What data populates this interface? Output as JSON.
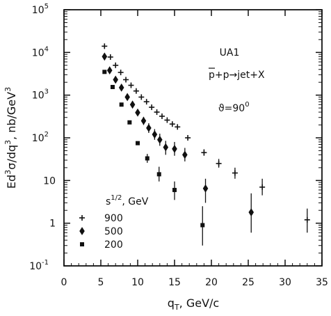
{
  "chart_data": {
    "type": "scatter",
    "annotations": {
      "experiment": "UA1",
      "reaction": "p+p→jet+X",
      "reaction_bar": "p",
      "angle_symbol": "ϑ",
      "angle_value": "=90",
      "angle_deg": "0",
      "legend_header_base": "s",
      "legend_header_exp": "1/2",
      "legend_header_unit": ", GeV"
    },
    "axes": {
      "x": {
        "label_main": "q",
        "label_sub": "T",
        "label_rest": ",  GeV/c",
        "range": [
          0,
          35
        ],
        "scale": "linear",
        "ticks": [
          "0",
          "5",
          "10",
          "15",
          "20",
          "25",
          "30",
          "35"
        ]
      },
      "y": {
        "label_pre": "Ed",
        "label_sup1": "3",
        "label_mid": "σ/dq",
        "label_sup2": "3",
        "label_post": ",  nb/GeV",
        "label_sup3": "3",
        "range": [
          0.1,
          100000
        ],
        "scale": "log",
        "ticks": [
          {
            "value": 100000,
            "base": "10",
            "exp": "5"
          },
          {
            "value": 10000,
            "base": "10",
            "exp": "4"
          },
          {
            "value": 1000,
            "base": "10",
            "exp": "3"
          },
          {
            "value": 100,
            "base": "10",
            "exp": "2"
          },
          {
            "value": 10,
            "base": "10",
            "exp": ""
          },
          {
            "value": 1,
            "base": "1",
            "exp": ""
          },
          {
            "value": 0.1,
            "base": "10",
            "exp": "-1"
          }
        ]
      }
    },
    "legend_position": "lower-left",
    "series": [
      {
        "name": "900",
        "marker": "cross",
        "points": [
          {
            "x": 5.5,
            "y": 14000
          },
          {
            "x": 6.3,
            "y": 7800
          },
          {
            "x": 7.0,
            "y": 5000
          },
          {
            "x": 7.7,
            "y": 3400
          },
          {
            "x": 8.4,
            "y": 2300
          },
          {
            "x": 9.1,
            "y": 1700
          },
          {
            "x": 9.8,
            "y": 1250
          },
          {
            "x": 10.5,
            "y": 900
          },
          {
            "x": 11.2,
            "y": 700
          },
          {
            "x": 11.9,
            "y": 520
          },
          {
            "x": 12.6,
            "y": 400
          },
          {
            "x": 13.3,
            "y": 320
          },
          {
            "x": 14.0,
            "y": 260
          },
          {
            "x": 14.7,
            "y": 210
          },
          {
            "x": 15.4,
            "y": 180
          },
          {
            "x": 16.8,
            "y": 100
          },
          {
            "x": 19.0,
            "y": 45,
            "err": [
              38,
              54
            ]
          },
          {
            "x": 21.0,
            "y": 25,
            "err": [
              20,
              32
            ]
          },
          {
            "x": 23.2,
            "y": 15,
            "err": [
              11,
              20
            ]
          },
          {
            "x": 26.9,
            "y": 7,
            "err": [
              4.5,
              11
            ]
          },
          {
            "x": 33.0,
            "y": 1.2,
            "err": [
              0.6,
              2.2
            ]
          }
        ]
      },
      {
        "name": "500",
        "marker": "diamond",
        "points": [
          {
            "x": 5.5,
            "y": 8000
          },
          {
            "x": 6.2,
            "y": 3800
          },
          {
            "x": 7.0,
            "y": 2300
          },
          {
            "x": 7.8,
            "y": 1500
          },
          {
            "x": 8.6,
            "y": 900
          },
          {
            "x": 9.3,
            "y": 600
          },
          {
            "x": 10.0,
            "y": 390
          },
          {
            "x": 10.8,
            "y": 250,
            "err": [
              200,
              310
            ]
          },
          {
            "x": 11.5,
            "y": 170,
            "err": [
              130,
              220
            ]
          },
          {
            "x": 12.3,
            "y": 120,
            "err": [
              90,
              160
            ]
          },
          {
            "x": 13.0,
            "y": 90,
            "err": [
              65,
              125
            ]
          },
          {
            "x": 13.8,
            "y": 60,
            "err": [
              40,
              85
            ]
          },
          {
            "x": 15.0,
            "y": 55,
            "err": [
              38,
              80
            ]
          },
          {
            "x": 16.4,
            "y": 40,
            "err": [
              28,
              58
            ]
          },
          {
            "x": 19.2,
            "y": 6.5,
            "err": [
              3,
              11
            ]
          },
          {
            "x": 25.4,
            "y": 1.8,
            "err": [
              0.6,
              5
            ]
          }
        ]
      },
      {
        "name": "200",
        "marker": "square",
        "points": [
          {
            "x": 5.5,
            "y": 3500
          },
          {
            "x": 6.6,
            "y": 1550
          },
          {
            "x": 7.8,
            "y": 600
          },
          {
            "x": 8.9,
            "y": 230
          },
          {
            "x": 10.0,
            "y": 75
          },
          {
            "x": 11.3,
            "y": 33,
            "err": [
              26,
              42
            ]
          },
          {
            "x": 12.9,
            "y": 14,
            "err": [
              9.5,
              21
            ]
          },
          {
            "x": 15.0,
            "y": 6,
            "err": [
              3.5,
              9.5
            ]
          },
          {
            "x": 18.8,
            "y": 0.9,
            "err": [
              0.3,
              2.5
            ]
          }
        ]
      }
    ]
  }
}
